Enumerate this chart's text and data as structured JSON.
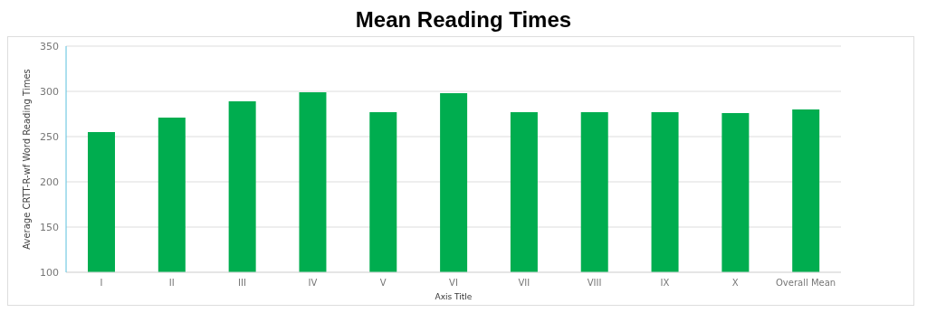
{
  "chart_data": {
    "type": "bar",
    "title": "Mean Reading Times",
    "xlabel": "Axis Title",
    "ylabel": "Average CRTT-R-wf Word Reading Times",
    "categories": [
      "I",
      "II",
      "III",
      "IV",
      "V",
      "VI",
      "VII",
      "VIII",
      "IX",
      "X",
      "Overall Mean"
    ],
    "values": [
      255,
      271,
      289,
      299,
      277,
      298,
      277,
      277,
      277,
      276,
      280
    ],
    "color": "#00ad4f",
    "ylim": [
      100,
      350
    ],
    "yticks": [
      100,
      150,
      200,
      250,
      300,
      350
    ],
    "grid": "y"
  }
}
